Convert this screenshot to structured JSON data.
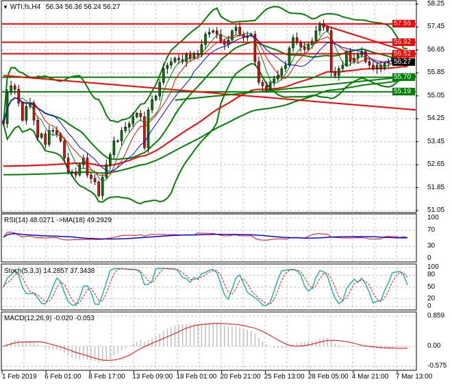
{
  "chart_data": {
    "type": "candlestick",
    "symbol_header": "WTI.fs,H4",
    "ohlc_header": [
      "56.34",
      "56.36",
      "56.24",
      "56.27"
    ],
    "price_axis_ticks": [
      "58.25",
      "57.45",
      "56.65",
      "55.85",
      "55.05",
      "54.25",
      "53.45",
      "52.65",
      "51.85",
      "51.05"
    ],
    "ylim": [
      51.05,
      58.25
    ],
    "time_axis_labels": [
      "1 Feb 2019",
      "6 Feb 01:00",
      "8 Feb 17:00",
      "13 Feb 09:00",
      "18 Feb 01:00",
      "20 Feb 21:00",
      "25 Feb 13:00",
      "28 Feb 05:00",
      "4 Mar 21:00",
      "7 Mar 13:00"
    ],
    "grid": true,
    "closes": [
      54.08,
      55.16,
      55.4,
      55.28,
      54.8,
      54.2,
      54.68,
      54.8,
      54.2,
      53.6,
      53.72,
      53.36,
      53.84,
      53.84,
      53.72,
      53.48,
      52.88,
      52.4,
      52.4,
      52.29,
      52.65,
      52.88,
      52.29,
      52.17,
      52.05,
      51.57,
      52.21,
      52.65,
      53.0,
      53.48,
      53.48,
      53.84,
      53.96,
      54.08,
      54.32,
      54.44,
      54.32,
      53.24,
      54.56,
      54.92,
      55.04,
      55.52,
      56.0,
      56.12,
      56.24,
      56.36,
      56.31,
      56.24,
      56.48,
      56.36,
      56.53,
      56.48,
      56.84,
      57.2,
      57.27,
      57.32,
      57.2,
      56.96,
      56.84,
      57.0,
      57.32,
      57.44,
      57.2,
      57.08,
      57.15,
      57.2,
      56.24,
      55.52,
      55.4,
      55.28,
      55.52,
      55.64,
      55.76,
      56.0,
      56.12,
      56.72,
      57.08,
      56.91,
      56.76,
      56.67,
      56.84,
      56.96,
      57.32,
      57.56,
      57.44,
      57.32,
      55.88,
      55.76,
      56.0,
      56.12,
      56.6,
      56.24,
      56.36,
      56.48,
      56.6,
      56.24,
      56.12,
      56.0,
      56.12,
      56.0,
      56.19,
      56.24,
      56.36,
      56.48,
      56.53,
      56.43,
      56.27
    ],
    "current_price": "56.27",
    "levels": [
      {
        "price": 57.56,
        "label": "57.56",
        "color": "#ff0000"
      },
      {
        "price": 56.92,
        "label": "56.92",
        "color": "#ff0000"
      },
      {
        "price": 56.52,
        "label": "56.52",
        "color": "#ff0000"
      },
      {
        "price": 55.7,
        "label": "55.70",
        "color": "#008000"
      },
      {
        "price": 55.19,
        "label": "55.19",
        "color": "#008000"
      }
    ],
    "trendlines": [
      {
        "from": [
          0,
          55.76
        ],
        "to": [
          111,
          54.56
        ],
        "color": "#ff0000"
      },
      {
        "from": [
          45,
          54.9
        ],
        "to": [
          111,
          55.75
        ],
        "color": "#008000"
      },
      {
        "from": [
          83,
          57.56
        ],
        "to": [
          111,
          56.5
        ],
        "color": "#ff0000"
      }
    ],
    "colors": {
      "bull": "#008000",
      "bear": "#ff0000",
      "ma_fast": "#008000",
      "ma_mid": "#ff0000",
      "ma_slow": "#0000ff",
      "bands": "#008000"
    },
    "indicators": {
      "rsi": {
        "label": "RSI(14) 48.0271  ->MA(18) 49.2929",
        "ticks": [
          "100",
          "70",
          "30",
          "0"
        ],
        "colors": [
          "#ff0000",
          "#0000ff"
        ]
      },
      "stoch": {
        "label": "Stoch(5,3,3) 14.2857 37.3438",
        "ticks": [
          "100",
          "80",
          "50",
          "20",
          "0"
        ],
        "colors": [
          "#20b2aa",
          "#ff0000"
        ]
      },
      "macd": {
        "label": "MACD(12,26,9) -0.020 -0.053",
        "ticks": [
          "0.859",
          "0.00",
          "-0.575"
        ],
        "ylim": [
          -0.575,
          0.859
        ],
        "colors": [
          "#c0c0c0",
          "#ff0000"
        ]
      }
    }
  }
}
